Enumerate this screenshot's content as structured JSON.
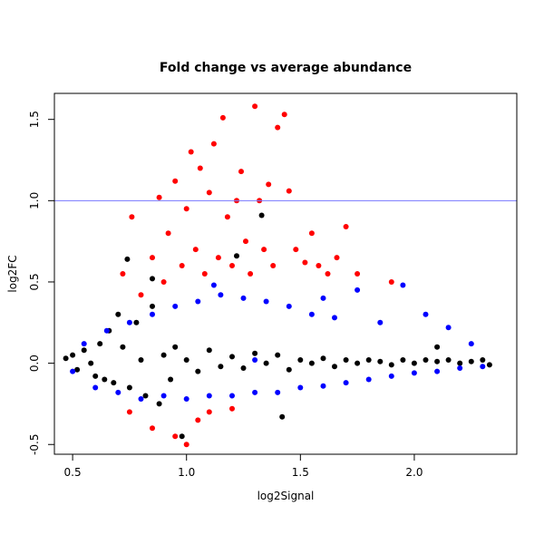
{
  "chart_data": {
    "type": "scatter",
    "title": "Fold change vs average abundance",
    "xlabel": "log2Signal",
    "ylabel": "log2FC",
    "xlim": [
      0.42,
      2.45
    ],
    "ylim": [
      -0.56,
      1.66
    ],
    "xticks": [
      0.5,
      1.0,
      1.5,
      2.0
    ],
    "xtick_labels": [
      "0.5",
      "1.0",
      "1.5",
      "2.0"
    ],
    "yticks": [
      -0.5,
      0.0,
      0.5,
      1.0,
      1.5
    ],
    "ytick_labels": [
      "-0.5",
      "0.0",
      "0.5",
      "1.0",
      "1.5"
    ],
    "grid": false,
    "reference_line": {
      "y": 1.0,
      "color": "#7777ff"
    },
    "colors": {
      "black_series": "#000000",
      "blue_series": "#0000ff",
      "red_series": "#ff0000"
    },
    "series": [
      {
        "color": "#000000",
        "points": [
          [
            0.47,
            0.03
          ],
          [
            0.5,
            0.05
          ],
          [
            0.52,
            -0.04
          ],
          [
            0.55,
            0.08
          ],
          [
            0.58,
            0.0
          ],
          [
            0.6,
            -0.08
          ],
          [
            0.62,
            0.12
          ],
          [
            0.64,
            -0.1
          ],
          [
            0.66,
            0.2
          ],
          [
            0.68,
            -0.12
          ],
          [
            0.7,
            0.3
          ],
          [
            0.72,
            0.1
          ],
          [
            0.74,
            0.64
          ],
          [
            0.75,
            -0.15
          ],
          [
            0.78,
            0.25
          ],
          [
            0.8,
            0.02
          ],
          [
            0.82,
            -0.2
          ],
          [
            0.85,
            0.35
          ],
          [
            0.88,
            -0.25
          ],
          [
            0.9,
            0.05
          ],
          [
            0.93,
            -0.1
          ],
          [
            0.95,
            0.1
          ],
          [
            0.98,
            -0.45
          ],
          [
            1.0,
            0.02
          ],
          [
            1.05,
            -0.05
          ],
          [
            1.1,
            0.08
          ],
          [
            1.15,
            -0.02
          ],
          [
            1.2,
            0.04
          ],
          [
            1.25,
            -0.03
          ],
          [
            1.3,
            0.06
          ],
          [
            1.35,
            0.0
          ],
          [
            1.4,
            0.05
          ],
          [
            1.45,
            -0.04
          ],
          [
            1.5,
            0.02
          ],
          [
            1.55,
            0.0
          ],
          [
            1.6,
            0.03
          ],
          [
            1.65,
            -0.02
          ],
          [
            1.7,
            0.02
          ],
          [
            1.75,
            0.0
          ],
          [
            1.8,
            0.02
          ],
          [
            1.85,
            0.01
          ],
          [
            1.9,
            -0.01
          ],
          [
            1.95,
            0.02
          ],
          [
            2.0,
            0.0
          ],
          [
            2.05,
            0.02
          ],
          [
            2.1,
            0.01
          ],
          [
            2.15,
            0.02
          ],
          [
            2.2,
            0.0
          ],
          [
            2.25,
            0.01
          ],
          [
            2.3,
            0.02
          ],
          [
            2.33,
            -0.01
          ],
          [
            1.33,
            0.91
          ],
          [
            1.22,
            0.66
          ],
          [
            0.85,
            0.52
          ],
          [
            1.42,
            -0.33
          ],
          [
            2.1,
            0.1
          ]
        ]
      },
      {
        "color": "#0000ff",
        "points": [
          [
            0.5,
            -0.05
          ],
          [
            0.55,
            0.12
          ],
          [
            0.6,
            -0.15
          ],
          [
            0.65,
            0.2
          ],
          [
            0.7,
            -0.18
          ],
          [
            0.75,
            0.25
          ],
          [
            0.8,
            -0.22
          ],
          [
            0.85,
            0.3
          ],
          [
            0.9,
            -0.2
          ],
          [
            0.95,
            0.35
          ],
          [
            1.0,
            -0.22
          ],
          [
            1.05,
            0.38
          ],
          [
            1.1,
            -0.2
          ],
          [
            1.15,
            0.42
          ],
          [
            1.2,
            -0.2
          ],
          [
            1.25,
            0.4
          ],
          [
            1.3,
            -0.18
          ],
          [
            1.35,
            0.38
          ],
          [
            1.4,
            -0.18
          ],
          [
            1.45,
            0.35
          ],
          [
            1.5,
            -0.15
          ],
          [
            1.55,
            0.3
          ],
          [
            1.6,
            -0.14
          ],
          [
            1.65,
            0.28
          ],
          [
            1.7,
            -0.12
          ],
          [
            1.75,
            0.45
          ],
          [
            1.8,
            -0.1
          ],
          [
            1.85,
            0.25
          ],
          [
            1.9,
            -0.08
          ],
          [
            1.95,
            0.48
          ],
          [
            2.0,
            -0.06
          ],
          [
            2.05,
            0.3
          ],
          [
            2.1,
            -0.05
          ],
          [
            2.15,
            0.22
          ],
          [
            2.2,
            -0.03
          ],
          [
            2.25,
            0.12
          ],
          [
            2.3,
            -0.02
          ],
          [
            1.12,
            0.48
          ],
          [
            1.6,
            0.4
          ],
          [
            1.3,
            0.02
          ]
        ]
      },
      {
        "color": "#ff0000",
        "points": [
          [
            0.72,
            0.55
          ],
          [
            0.76,
            0.9
          ],
          [
            0.8,
            0.42
          ],
          [
            0.85,
            0.65
          ],
          [
            0.88,
            1.02
          ],
          [
            0.9,
            0.5
          ],
          [
            0.92,
            0.8
          ],
          [
            0.95,
            1.12
          ],
          [
            0.98,
            0.6
          ],
          [
            1.0,
            0.95
          ],
          [
            1.02,
            1.3
          ],
          [
            1.04,
            0.7
          ],
          [
            1.06,
            1.2
          ],
          [
            1.08,
            0.55
          ],
          [
            1.1,
            1.05
          ],
          [
            1.12,
            1.35
          ],
          [
            1.14,
            0.65
          ],
          [
            1.16,
            1.51
          ],
          [
            1.18,
            0.9
          ],
          [
            1.2,
            0.6
          ],
          [
            1.22,
            1.0
          ],
          [
            1.24,
            1.18
          ],
          [
            1.26,
            0.75
          ],
          [
            1.28,
            0.55
          ],
          [
            1.3,
            1.58
          ],
          [
            1.32,
            1.0
          ],
          [
            1.34,
            0.7
          ],
          [
            1.36,
            1.1
          ],
          [
            1.38,
            0.6
          ],
          [
            1.4,
            1.45
          ],
          [
            1.43,
            1.53
          ],
          [
            1.45,
            1.06
          ],
          [
            1.48,
            0.7
          ],
          [
            1.52,
            0.62
          ],
          [
            1.55,
            0.8
          ],
          [
            1.58,
            0.6
          ],
          [
            1.62,
            0.55
          ],
          [
            1.66,
            0.65
          ],
          [
            1.7,
            0.84
          ],
          [
            1.75,
            0.55
          ],
          [
            1.9,
            0.5
          ],
          [
            0.75,
            -0.3
          ],
          [
            0.85,
            -0.4
          ],
          [
            0.95,
            -0.45
          ],
          [
            1.0,
            -0.5
          ],
          [
            1.05,
            -0.35
          ],
          [
            1.1,
            -0.3
          ],
          [
            1.2,
            -0.28
          ]
        ]
      }
    ]
  }
}
